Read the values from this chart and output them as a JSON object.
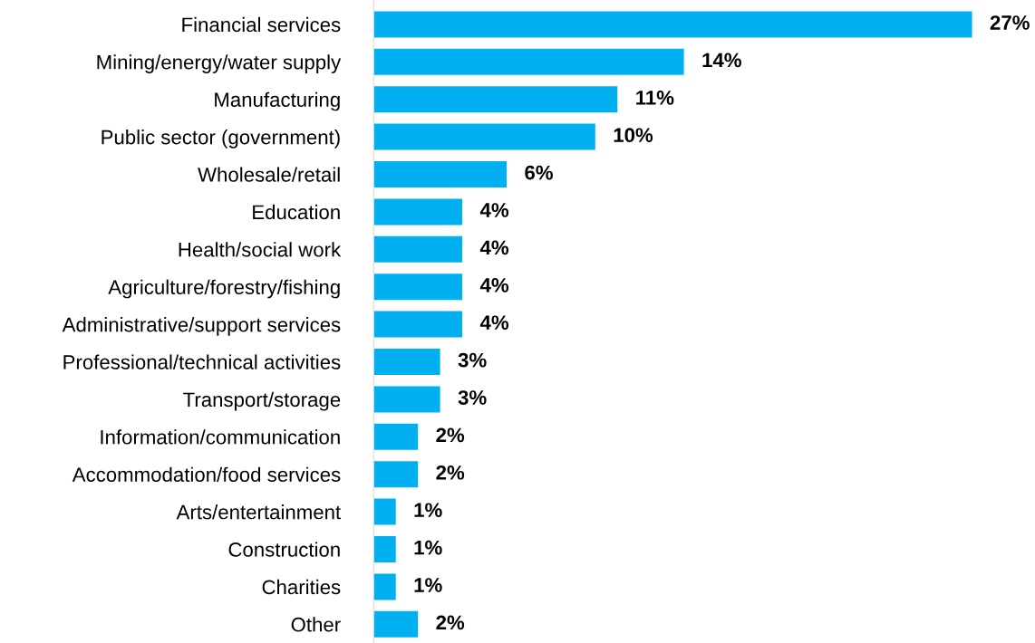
{
  "chart_data": {
    "type": "bar",
    "orientation": "horizontal",
    "grid": false,
    "legend": false,
    "tick_labels": "y",
    "categories": [
      "Financial services",
      "Mining/energy/water supply",
      "Manufacturing",
      "Public sector (government)",
      "Wholesale/retail",
      "Education",
      "Health/social work",
      "Agriculture/forestry/fishing",
      "Administrative/support services",
      "Professional/technical activities",
      "Transport/storage",
      "Information/communication",
      "Accommodation/food services",
      "Arts/entertainment",
      "Construction",
      "Charities",
      "Other"
    ],
    "values": [
      27,
      14,
      11,
      10,
      6,
      4,
      4,
      4,
      4,
      3,
      3,
      2,
      2,
      1,
      1,
      1,
      2
    ],
    "value_labels": [
      "27%",
      "14%",
      "11%",
      "10%",
      "6%",
      "4%",
      "4%",
      "4%",
      "4%",
      "3%",
      "3%",
      "2%",
      "2%",
      "1%",
      "1%",
      "1%",
      "2%"
    ],
    "color": "#00b0f0"
  }
}
